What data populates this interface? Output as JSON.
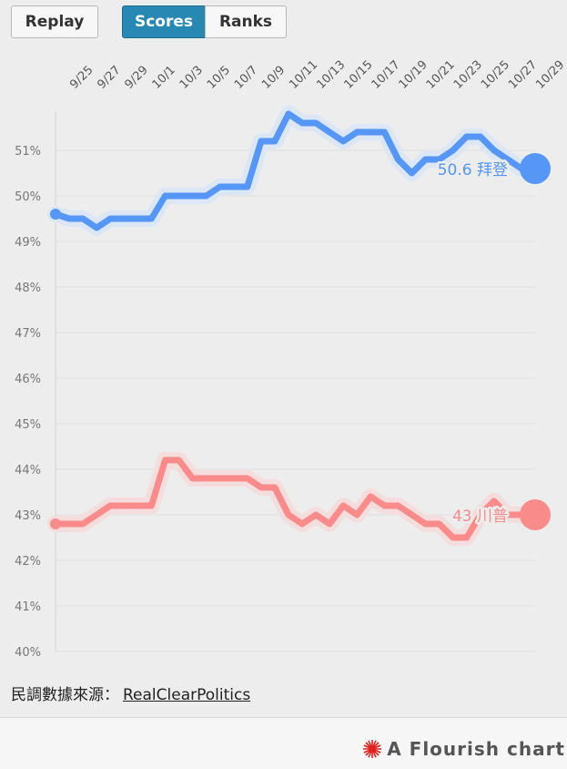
{
  "controls": {
    "replay_label": "Replay",
    "scores_label": "Scores",
    "ranks_label": "Ranks",
    "active": "Scores"
  },
  "source": {
    "prefix": "民調數據來源：",
    "link_text": "RealClearPolitics"
  },
  "footer": {
    "brand_text": "A Flourish chart"
  },
  "colors": {
    "biden": "#5596f7",
    "trump": "#f98b8b",
    "background": "#ededed",
    "active_button": "#2789b3"
  },
  "chart_data": {
    "type": "line",
    "x": [
      "9/24",
      "9/25",
      "9/26",
      "9/27",
      "9/28",
      "9/29",
      "9/30",
      "10/1",
      "10/2",
      "10/3",
      "10/4",
      "10/5",
      "10/6",
      "10/7",
      "10/8",
      "10/9",
      "10/10",
      "10/11",
      "10/12",
      "10/13",
      "10/14",
      "10/15",
      "10/16",
      "10/17",
      "10/18",
      "10/19",
      "10/20",
      "10/21",
      "10/22",
      "10/23",
      "10/24",
      "10/25",
      "10/26",
      "10/27",
      "10/28",
      "10/29"
    ],
    "x_tick_labels": [
      "9/25",
      "9/27",
      "9/29",
      "10/1",
      "10/3",
      "10/5",
      "10/7",
      "10/9",
      "10/11",
      "10/13",
      "10/15",
      "10/17",
      "10/19",
      "10/21",
      "10/23",
      "10/25",
      "10/27",
      "10/29"
    ],
    "y_ticks": [
      "51%",
      "50%",
      "49%",
      "48%",
      "47%",
      "46%",
      "45%",
      "44%",
      "43%",
      "42%",
      "41%",
      "40%"
    ],
    "ylim": [
      40,
      51.9
    ],
    "grid": true,
    "series": [
      {
        "name": "拜登",
        "end_label": "50.6 拜登",
        "values": [
          49.6,
          49.5,
          49.5,
          49.3,
          49.5,
          49.5,
          49.5,
          49.5,
          50.0,
          50.0,
          50.0,
          50.0,
          50.2,
          50.2,
          50.2,
          51.2,
          51.2,
          51.8,
          51.6,
          51.6,
          51.4,
          51.2,
          51.4,
          51.4,
          51.4,
          50.8,
          50.5,
          50.8,
          50.8,
          51.0,
          51.3,
          51.3,
          51.0,
          50.8,
          50.6,
          50.6
        ]
      },
      {
        "name": "川普",
        "end_label": "43 川普",
        "values": [
          42.8,
          42.8,
          42.8,
          43.0,
          43.2,
          43.2,
          43.2,
          43.2,
          44.2,
          44.2,
          43.8,
          43.8,
          43.8,
          43.8,
          43.8,
          43.6,
          43.6,
          43.0,
          42.8,
          43.0,
          42.8,
          43.2,
          43.0,
          43.4,
          43.2,
          43.2,
          43.0,
          42.8,
          42.8,
          42.5,
          42.5,
          43.0,
          43.3,
          43.0,
          43.0,
          43.0
        ]
      }
    ]
  }
}
